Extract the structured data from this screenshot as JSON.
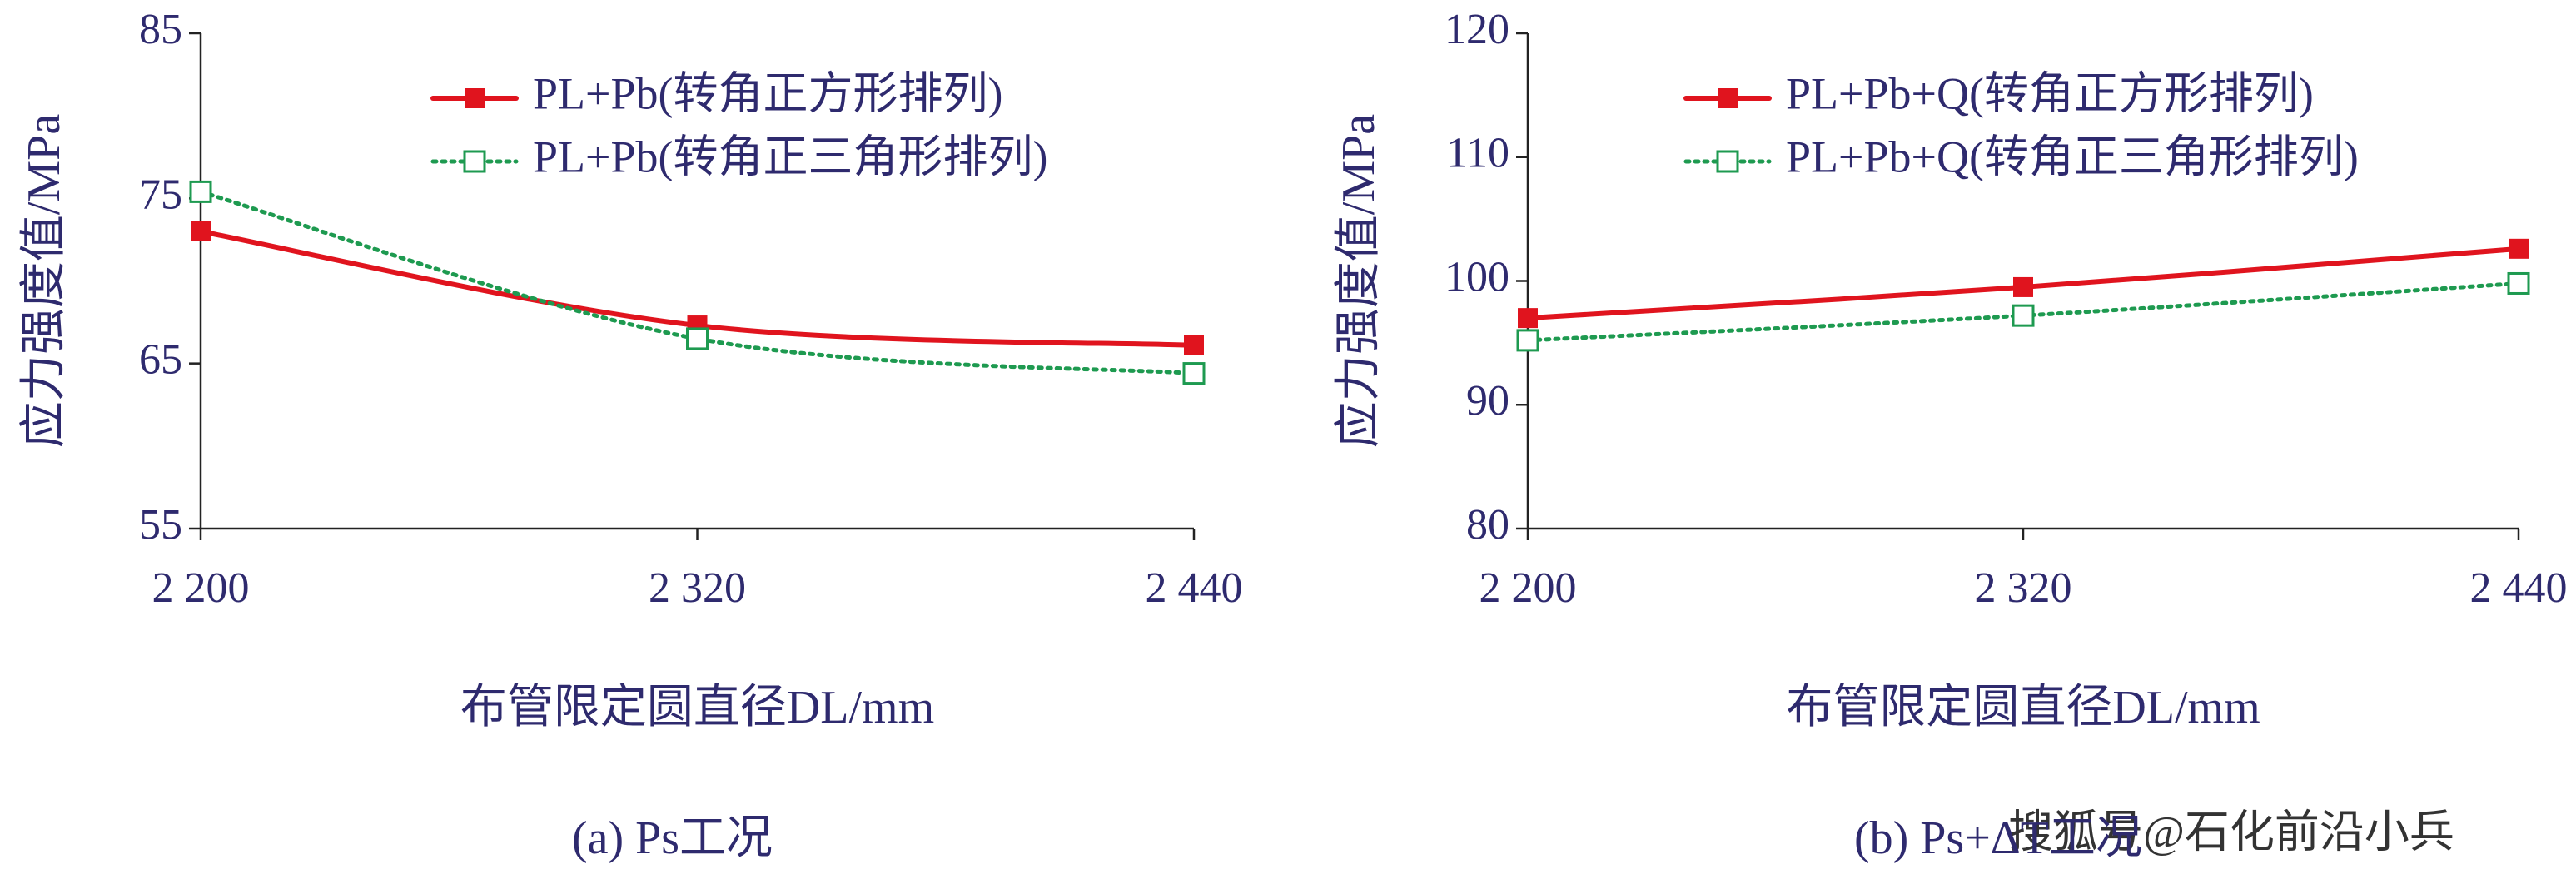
{
  "chart_data": [
    {
      "type": "line",
      "caption": "(a) Ps工况",
      "x_label": "布管限定圆直径DL/mm",
      "y_label": "应力强度值/MPa",
      "x": [
        2200,
        2320,
        2440
      ],
      "xlim": [
        2200,
        2440
      ],
      "xticks": [
        {
          "value": 2200,
          "label": "2 200"
        },
        {
          "value": 2320,
          "label": "2 320"
        },
        {
          "value": 2440,
          "label": "2 440"
        }
      ],
      "ylim": [
        55,
        85
      ],
      "yticks": [
        55,
        65,
        75,
        85
      ],
      "legend": "upper right",
      "series": [
        {
          "name": "PL+Pb(转角正方形排列)",
          "color": "#e0141e",
          "marker": "filled-square",
          "dash": "solid",
          "values": [
            73.0,
            67.3,
            66.1
          ]
        },
        {
          "name": "PL+Pb(转角正三角形排列)",
          "color": "#1e9a50",
          "marker": "open-square",
          "dash": "dotted",
          "values": [
            75.4,
            66.5,
            64.4
          ]
        }
      ]
    },
    {
      "type": "line",
      "caption": "(b) Ps+ΔT工况",
      "x_label": "布管限定圆直径DL/mm",
      "y_label": "应力强度值/MPa",
      "x": [
        2200,
        2320,
        2440
      ],
      "xlim": [
        2200,
        2440
      ],
      "xticks": [
        {
          "value": 2200,
          "label": "2 200"
        },
        {
          "value": 2320,
          "label": "2 320"
        },
        {
          "value": 2440,
          "label": "2 440"
        }
      ],
      "ylim": [
        80,
        120
      ],
      "yticks": [
        80,
        90,
        100,
        110,
        120
      ],
      "legend": "upper right",
      "series": [
        {
          "name": "PL+Pb+Q(转角正方形排列)",
          "color": "#e0141e",
          "marker": "filled-square",
          "dash": "solid",
          "values": [
            97.0,
            99.5,
            102.6
          ]
        },
        {
          "name": "PL+Pb+Q(转角正三角形排列)",
          "color": "#1e9a50",
          "marker": "open-square",
          "dash": "dotted",
          "values": [
            95.2,
            97.2,
            99.8
          ]
        }
      ]
    }
  ],
  "watermark": "搜狐号@石化前沿小兵"
}
